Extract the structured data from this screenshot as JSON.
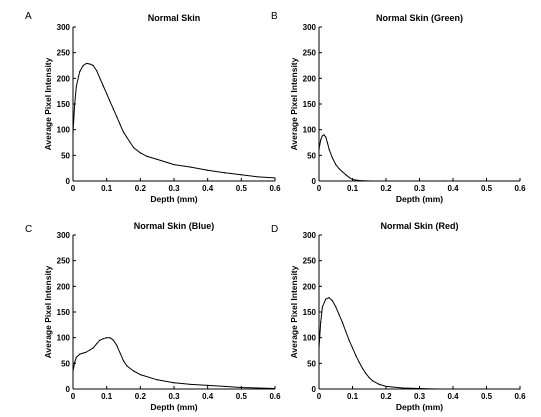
{
  "chart_data": [
    {
      "panel": "A",
      "type": "line",
      "title": "Normal Skin",
      "xlabel": "Depth (mm)",
      "ylabel": "Average Pixel Intensity",
      "xlim": [
        0,
        0.6
      ],
      "ylim": [
        0,
        300
      ],
      "xticks": [
        "0",
        "0.1",
        "0.2",
        "0.3",
        "0.4",
        "0.5",
        "0.6"
      ],
      "yticks": [
        "0",
        "50",
        "100",
        "150",
        "200",
        "250",
        "300"
      ],
      "grid": false,
      "line_color": "#000000",
      "x": [
        0,
        0.005,
        0.01,
        0.02,
        0.03,
        0.04,
        0.05,
        0.06,
        0.07,
        0.08,
        0.09,
        0.1,
        0.11,
        0.12,
        0.13,
        0.14,
        0.15,
        0.16,
        0.17,
        0.18,
        0.2,
        0.22,
        0.25,
        0.28,
        0.3,
        0.35,
        0.4,
        0.45,
        0.5,
        0.55,
        0.6
      ],
      "y": [
        95,
        150,
        185,
        213,
        225,
        229,
        228,
        225,
        215,
        200,
        185,
        170,
        155,
        140,
        125,
        110,
        95,
        85,
        75,
        65,
        55,
        48,
        42,
        36,
        32,
        27,
        21,
        16,
        12,
        8,
        6
      ]
    },
    {
      "panel": "B",
      "type": "line",
      "title": "Normal Skin (Green)",
      "xlabel": "Depth (mm)",
      "ylabel": "Average Pixel Intensity",
      "xlim": [
        0,
        0.6
      ],
      "ylim": [
        0,
        300
      ],
      "xticks": [
        "0",
        "0.1",
        "0.2",
        "0.3",
        "0.4",
        "0.5",
        "0.6"
      ],
      "yticks": [
        "0",
        "50",
        "100",
        "150",
        "200",
        "250",
        "300"
      ],
      "grid": false,
      "line_color": "#000000",
      "x": [
        0,
        0.005,
        0.01,
        0.015,
        0.02,
        0.025,
        0.03,
        0.04,
        0.05,
        0.06,
        0.07,
        0.08,
        0.09,
        0.1,
        0.12,
        0.15,
        0.2,
        0.3,
        0.37
      ],
      "y": [
        62,
        80,
        88,
        90,
        86,
        75,
        62,
        45,
        32,
        24,
        18,
        12,
        7,
        3,
        1,
        0,
        0,
        0,
        0
      ]
    },
    {
      "panel": "C",
      "type": "line",
      "title": "Normal Skin (Blue)",
      "xlabel": "Depth (mm)",
      "ylabel": "Average Pixel Intensity",
      "xlim": [
        0,
        0.6
      ],
      "ylim": [
        0,
        300
      ],
      "xticks": [
        "0",
        "0.1",
        "0.2",
        "0.3",
        "0.4",
        "0.5",
        "0.6"
      ],
      "yticks": [
        "0",
        "50",
        "100",
        "150",
        "200",
        "250",
        "300"
      ],
      "grid": false,
      "line_color": "#000000",
      "x": [
        0,
        0.005,
        0.01,
        0.02,
        0.03,
        0.04,
        0.05,
        0.06,
        0.07,
        0.08,
        0.09,
        0.1,
        0.11,
        0.12,
        0.13,
        0.14,
        0.15,
        0.16,
        0.18,
        0.2,
        0.25,
        0.3,
        0.35,
        0.4,
        0.45,
        0.5,
        0.55,
        0.6
      ],
      "y": [
        35,
        52,
        62,
        68,
        70,
        72,
        76,
        80,
        88,
        95,
        98,
        100,
        100,
        95,
        85,
        70,
        55,
        45,
        35,
        28,
        18,
        12,
        9,
        7,
        5,
        3,
        2,
        1
      ]
    },
    {
      "panel": "D",
      "type": "line",
      "title": "Normal Skin (Red)",
      "xlabel": "Depth (mm)",
      "ylabel": "Average Pixel Intensity",
      "xlim": [
        0,
        0.6
      ],
      "ylim": [
        0,
        300
      ],
      "xticks": [
        "0",
        "0.1",
        "0.2",
        "0.3",
        "0.4",
        "0.5",
        "0.6"
      ],
      "yticks": [
        "0",
        "50",
        "100",
        "150",
        "200",
        "250",
        "300"
      ],
      "grid": false,
      "line_color": "#000000",
      "x": [
        0,
        0.005,
        0.01,
        0.02,
        0.03,
        0.04,
        0.05,
        0.06,
        0.07,
        0.08,
        0.09,
        0.1,
        0.11,
        0.12,
        0.13,
        0.14,
        0.15,
        0.16,
        0.18,
        0.2,
        0.25,
        0.3,
        0.35,
        0.4,
        0.5,
        0.6
      ],
      "y": [
        80,
        130,
        160,
        175,
        178,
        172,
        160,
        145,
        130,
        112,
        95,
        80,
        65,
        52,
        40,
        30,
        22,
        16,
        9,
        5,
        2,
        1,
        0,
        0,
        0,
        0
      ]
    }
  ]
}
